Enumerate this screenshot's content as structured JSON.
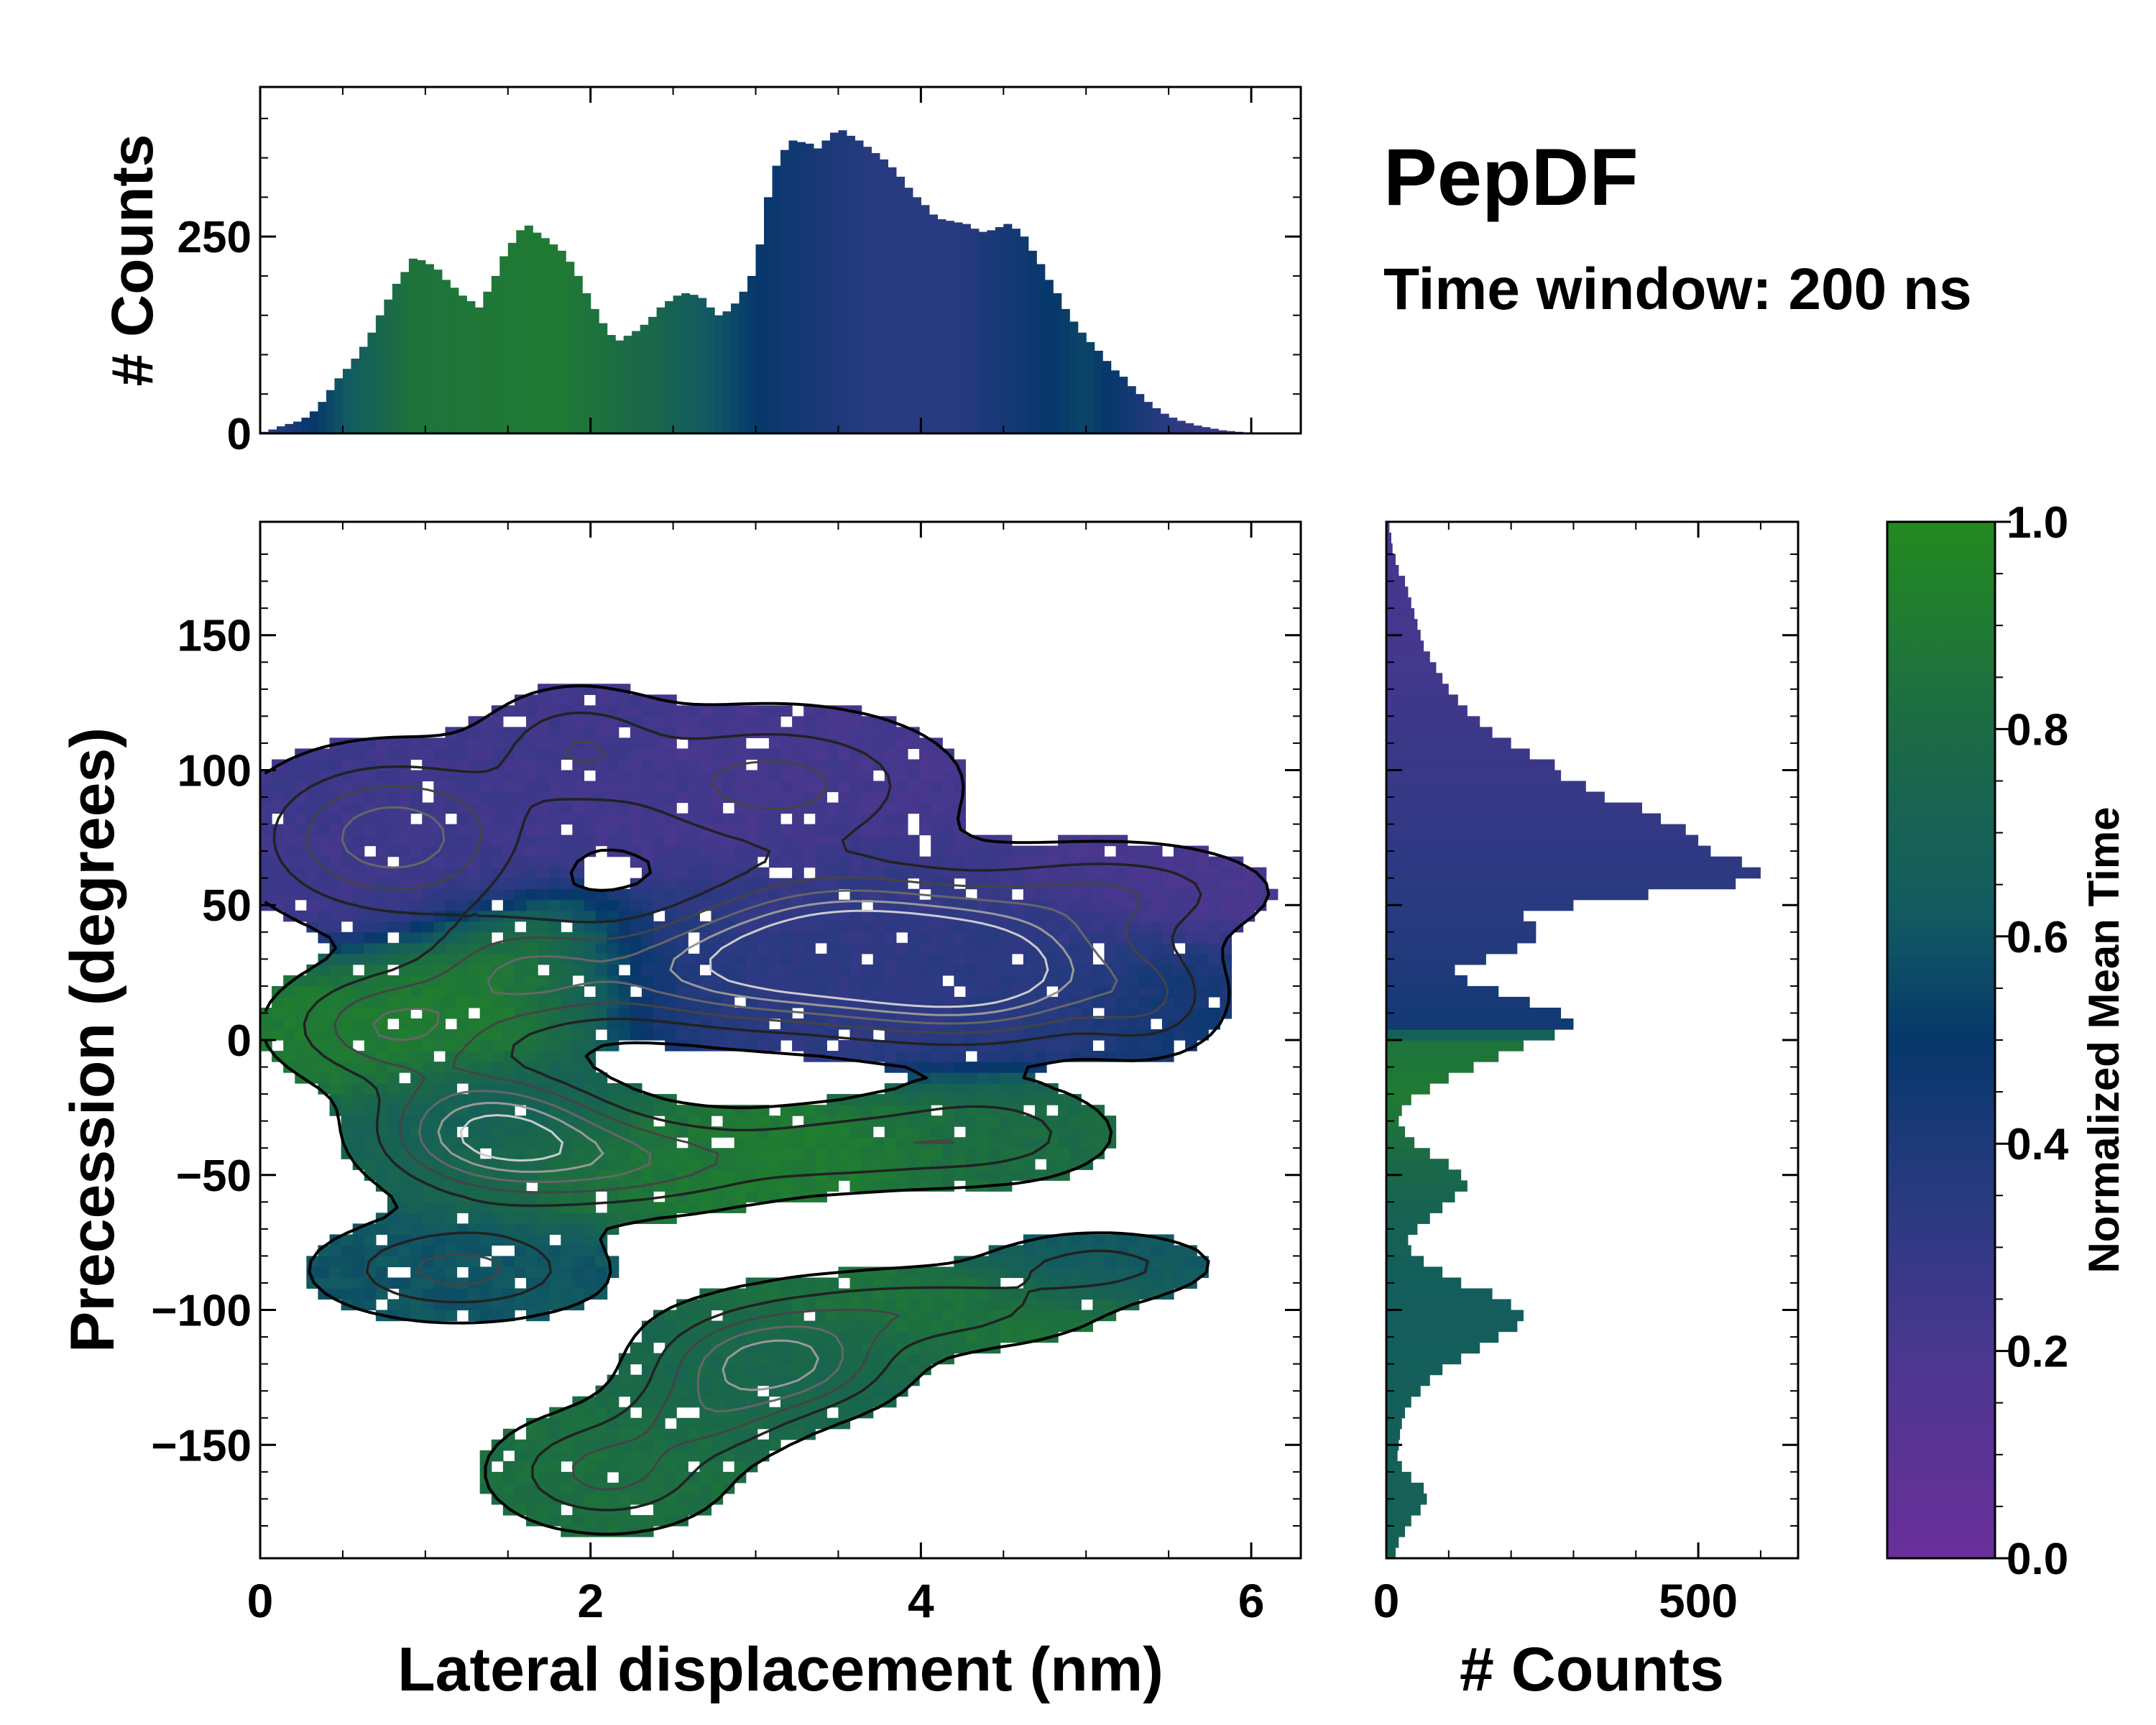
{
  "colors": {
    "low": "#6a2f9a",
    "mid": "#06386b",
    "high": "#238a20",
    "axis": "#000000",
    "background": "#ffffff"
  },
  "chart_data": {
    "type": "heatmap",
    "title": "PepDF",
    "subtitle": "Time window: 200 ns",
    "main": {
      "xlabel": "Lateral displacement (nm)",
      "ylabel": "Precession (degrees)",
      "xlim": [
        0,
        6.3
      ],
      "ylim": [
        -192,
        192
      ],
      "xticks": [
        "0",
        "2",
        "4",
        "6"
      ],
      "xtick_values": [
        0,
        2,
        4,
        6
      ],
      "yticks": [
        "150",
        "100",
        "50",
        "0",
        "−50",
        "−100",
        "−150"
      ],
      "ytick_values": [
        150,
        100,
        50,
        0,
        -50,
        -100,
        -150
      ],
      "clusters": [
        {
          "x": 0.8,
          "y": 75,
          "sx": 0.55,
          "sy": 20,
          "w": 0.7,
          "t": 0.25
        },
        {
          "x": 1.9,
          "y": 110,
          "sx": 0.35,
          "sy": 14,
          "w": 0.35,
          "t": 0.25
        },
        {
          "x": 3.1,
          "y": 95,
          "sx": 0.7,
          "sy": 18,
          "w": 0.5,
          "t": 0.22
        },
        {
          "x": 3.5,
          "y": 34,
          "sx": 0.6,
          "sy": 18,
          "w": 1.0,
          "t": 0.3
        },
        {
          "x": 4.4,
          "y": 25,
          "sx": 0.55,
          "sy": 16,
          "w": 0.95,
          "t": 0.35
        },
        {
          "x": 5.2,
          "y": 55,
          "sx": 0.6,
          "sy": 12,
          "w": 0.4,
          "t": 0.2
        },
        {
          "x": 5.4,
          "y": 15,
          "sx": 0.3,
          "sy": 14,
          "w": 0.35,
          "t": 0.45
        },
        {
          "x": 2.6,
          "y": 25,
          "sx": 0.55,
          "sy": 14,
          "w": 0.5,
          "t": 0.4
        },
        {
          "x": 0.8,
          "y": 5,
          "sx": 0.45,
          "sy": 14,
          "w": 0.6,
          "t": 0.9
        },
        {
          "x": 1.6,
          "y": 25,
          "sx": 0.4,
          "sy": 14,
          "w": 0.5,
          "t": 0.95
        },
        {
          "x": 1.4,
          "y": -33,
          "sx": 0.45,
          "sy": 14,
          "w": 0.85,
          "t": 0.68
        },
        {
          "x": 2.2,
          "y": -45,
          "sx": 0.65,
          "sy": 12,
          "w": 0.55,
          "t": 0.88
        },
        {
          "x": 3.5,
          "y": -40,
          "sx": 0.45,
          "sy": 10,
          "w": 0.3,
          "t": 0.92
        },
        {
          "x": 4.4,
          "y": -35,
          "sx": 0.5,
          "sy": 12,
          "w": 0.4,
          "t": 0.8
        },
        {
          "x": 1.2,
          "y": -85,
          "sx": 0.55,
          "sy": 12,
          "w": 0.5,
          "t": 0.6
        },
        {
          "x": 3.1,
          "y": -120,
          "sx": 0.45,
          "sy": 12,
          "w": 0.85,
          "t": 0.75
        },
        {
          "x": 4.0,
          "y": -100,
          "sx": 0.7,
          "sy": 10,
          "w": 0.4,
          "t": 0.85
        },
        {
          "x": 5.1,
          "y": -83,
          "sx": 0.45,
          "sy": 8,
          "w": 0.35,
          "t": 0.62
        },
        {
          "x": 2.1,
          "y": -160,
          "sx": 0.45,
          "sy": 14,
          "w": 0.5,
          "t": 0.82
        },
        {
          "x": 2.7,
          "y": -140,
          "sx": 0.35,
          "sy": 10,
          "w": 0.35,
          "t": 0.78
        }
      ]
    },
    "top_histogram": {
      "ylabel": "# Counts",
      "ylim": [
        0,
        440
      ],
      "yticks": [
        "0",
        "250"
      ],
      "ytick_values": [
        0,
        250
      ],
      "bin_width": 0.05,
      "x_start": 0,
      "values": [
        2,
        5,
        9,
        12,
        15,
        20,
        28,
        40,
        55,
        70,
        82,
        95,
        110,
        128,
        150,
        170,
        190,
        205,
        222,
        220,
        215,
        208,
        195,
        185,
        175,
        168,
        160,
        180,
        200,
        225,
        242,
        258,
        264,
        255,
        248,
        240,
        232,
        218,
        200,
        178,
        158,
        140,
        125,
        118,
        124,
        130,
        138,
        148,
        160,
        168,
        175,
        178,
        176,
        172,
        160,
        150,
        155,
        165,
        180,
        200,
        240,
        300,
        340,
        360,
        372,
        370,
        368,
        362,
        372,
        382,
        385,
        378,
        372,
        364,
        356,
        348,
        338,
        326,
        312,
        300,
        290,
        278,
        272,
        270,
        268,
        266,
        260,
        256,
        258,
        262,
        266,
        260,
        250,
        232,
        215,
        195,
        178,
        158,
        142,
        128,
        116,
        105,
        92,
        80,
        72,
        60,
        50,
        40,
        32,
        25,
        20,
        16,
        13,
        10,
        8,
        6,
        4,
        3,
        2,
        1
      ],
      "gradient": [
        {
          "x": 0,
          "t": 0.3
        },
        {
          "x": 0.9,
          "t": 0.85
        },
        {
          "x": 1.8,
          "t": 0.9
        },
        {
          "x": 2.4,
          "t": 0.75
        },
        {
          "x": 3.0,
          "t": 0.5
        },
        {
          "x": 3.7,
          "t": 0.35
        },
        {
          "x": 4.2,
          "t": 0.35
        },
        {
          "x": 5.0,
          "t": 0.55
        },
        {
          "x": 5.6,
          "t": 0.3
        },
        {
          "x": 6.3,
          "t": 0.2
        }
      ]
    },
    "right_histogram": {
      "xlabel": "# Counts",
      "xlim": [
        0,
        660
      ],
      "xticks": [
        "0",
        "500"
      ],
      "xtick_values": [
        0,
        500
      ],
      "bin_width": 4,
      "y_start": -192,
      "values": [
        15,
        20,
        30,
        40,
        55,
        65,
        60,
        40,
        25,
        18,
        20,
        22,
        25,
        30,
        40,
        55,
        70,
        90,
        120,
        150,
        180,
        210,
        220,
        200,
        170,
        120,
        90,
        60,
        40,
        35,
        50,
        70,
        90,
        110,
        130,
        120,
        100,
        70,
        45,
        30,
        20,
        25,
        40,
        70,
        100,
        140,
        180,
        220,
        270,
        300,
        280,
        230,
        180,
        130,
        110,
        160,
        210,
        240,
        240,
        220,
        300,
        420,
        560,
        600,
        570,
        520,
        500,
        480,
        440,
        410,
        350,
        320,
        280,
        270,
        230,
        200,
        170,
        150,
        130,
        115,
        100,
        90,
        80,
        70,
        60,
        55,
        50,
        45,
        40,
        35,
        30,
        20,
        15,
        10,
        8,
        5
      ],
      "gradient": [
        {
          "y": -192,
          "t": 0.7
        },
        {
          "y": -95,
          "t": 0.65
        },
        {
          "y": -60,
          "t": 0.72
        },
        {
          "y": -20,
          "t": 0.9
        },
        {
          "y": 0,
          "t": 0.85
        },
        {
          "y": 5,
          "t": 0.45
        },
        {
          "y": 30,
          "t": 0.38
        },
        {
          "y": 80,
          "t": 0.3
        },
        {
          "y": 150,
          "t": 0.22
        }
      ]
    },
    "colorbar": {
      "label": "Normalized Mean Time",
      "range": [
        0.0,
        1.0
      ],
      "ticks": [
        "0.0",
        "0.2",
        "0.4",
        "0.6",
        "0.8",
        "1.0"
      ],
      "tick_values": [
        0.0,
        0.2,
        0.4,
        0.6,
        0.8,
        1.0
      ]
    }
  }
}
